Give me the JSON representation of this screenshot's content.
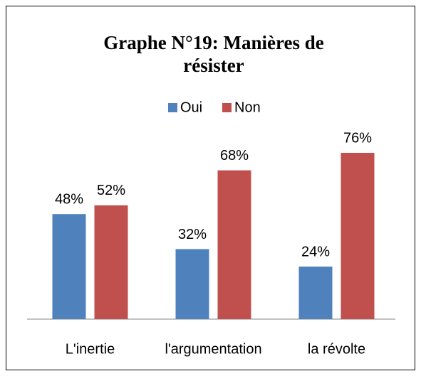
{
  "chart_data": {
    "type": "bar",
    "title": "Graphe N°19: Manières de résister",
    "categories": [
      "L'inertie",
      "l'argumentation",
      "la révolte"
    ],
    "series": [
      {
        "name": "Oui",
        "color": "#4f81bd",
        "values": [
          48,
          32,
          24
        ],
        "value_labels": [
          "48%",
          "32%",
          "24%"
        ]
      },
      {
        "name": "Non",
        "color": "#c0504d",
        "values": [
          52,
          68,
          76
        ],
        "value_labels": [
          "52%",
          "68%",
          "76%"
        ]
      }
    ],
    "legend": "top"
  }
}
